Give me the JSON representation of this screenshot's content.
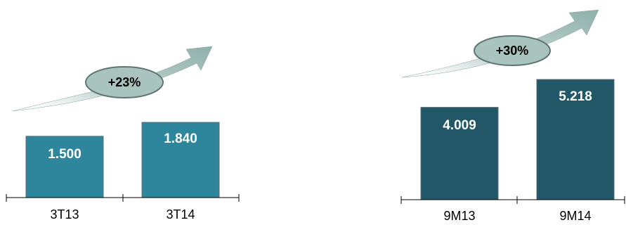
{
  "chart_data": [
    {
      "type": "bar",
      "categories": [
        "3T13",
        "3T14"
      ],
      "values": [
        1.5,
        1.84
      ],
      "value_labels": [
        "1.500",
        "1.840"
      ],
      "growth_label": "+23%",
      "bar_color": "#2e869c"
    },
    {
      "type": "bar",
      "categories": [
        "9M13",
        "9M14"
      ],
      "values": [
        4.009,
        5.218
      ],
      "value_labels": [
        "4.009",
        "5.218"
      ],
      "growth_label": "+30%",
      "bar_color": "#215767"
    }
  ],
  "colors": {
    "arrow": "#a7c4bf",
    "arrow_dark": "#7f9f9a",
    "ellipse_fill": "#a9c3bf",
    "ellipse_stroke": "#5f7774"
  }
}
